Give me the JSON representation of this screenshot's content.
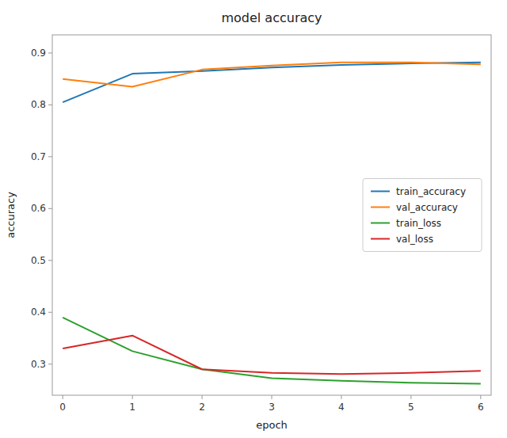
{
  "chart_data": {
    "type": "line",
    "title": "model accuracy",
    "xlabel": "epoch",
    "ylabel": "accuracy",
    "x": [
      0,
      1,
      2,
      3,
      4,
      5,
      6
    ],
    "series": [
      {
        "name": "train_accuracy",
        "color": "#1f77b4",
        "values": [
          0.805,
          0.86,
          0.865,
          0.872,
          0.877,
          0.88,
          0.882
        ]
      },
      {
        "name": "val_accuracy",
        "color": "#ff7f0e",
        "values": [
          0.85,
          0.835,
          0.868,
          0.876,
          0.882,
          0.882,
          0.878
        ]
      },
      {
        "name": "train_loss",
        "color": "#2ca02c",
        "values": [
          0.39,
          0.325,
          0.29,
          0.273,
          0.268,
          0.264,
          0.262
        ]
      },
      {
        "name": "val_loss",
        "color": "#d62728",
        "values": [
          0.33,
          0.355,
          0.29,
          0.283,
          0.281,
          0.283,
          0.287
        ]
      }
    ],
    "xlim": [
      -0.15,
      6.15
    ],
    "xticks": [
      0,
      1,
      2,
      3,
      4,
      5,
      6
    ],
    "ylim": [
      0.24,
      0.935
    ],
    "yticks": [
      0.3,
      0.4,
      0.5,
      0.6,
      0.7,
      0.8,
      0.9
    ],
    "grid": false,
    "legend": "right"
  }
}
